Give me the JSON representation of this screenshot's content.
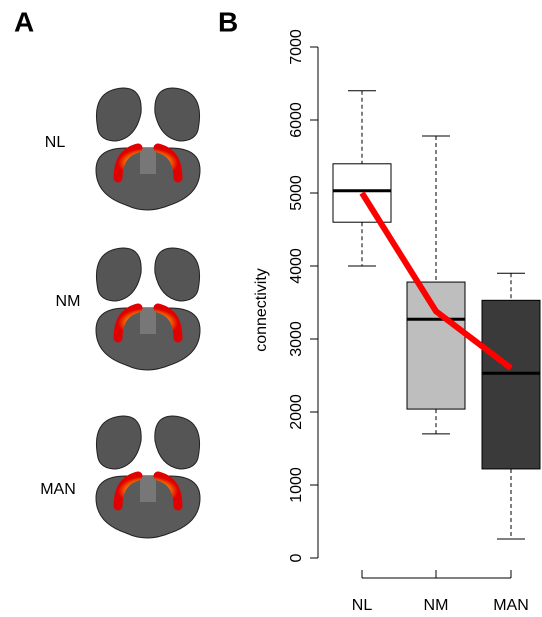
{
  "panel_labels": [
    "A",
    "B"
  ],
  "brain_labels": [
    "NL",
    "NM",
    "MAN"
  ],
  "chart_data": {
    "type": "box",
    "y_label": "connectivity",
    "categories": [
      "NL",
      "NM",
      "MAN"
    ],
    "colors": [
      "#ffffff",
      "#bebebe",
      "#3a3a3a"
    ],
    "whisker_low": [
      4000,
      1700,
      260
    ],
    "q1": [
      4600,
      2040,
      1220
    ],
    "median": [
      5030,
      3270,
      2530
    ],
    "q3": [
      5400,
      3780,
      3530
    ],
    "whisker_high": [
      6400,
      5780,
      3900
    ],
    "line_values": [
      5000,
      3380,
      2600
    ],
    "line_color": "#ff0000",
    "ylim": [
      0,
      7000
    ],
    "yticks": [
      0,
      1000,
      2000,
      3000,
      4000,
      5000,
      6000,
      7000
    ]
  }
}
